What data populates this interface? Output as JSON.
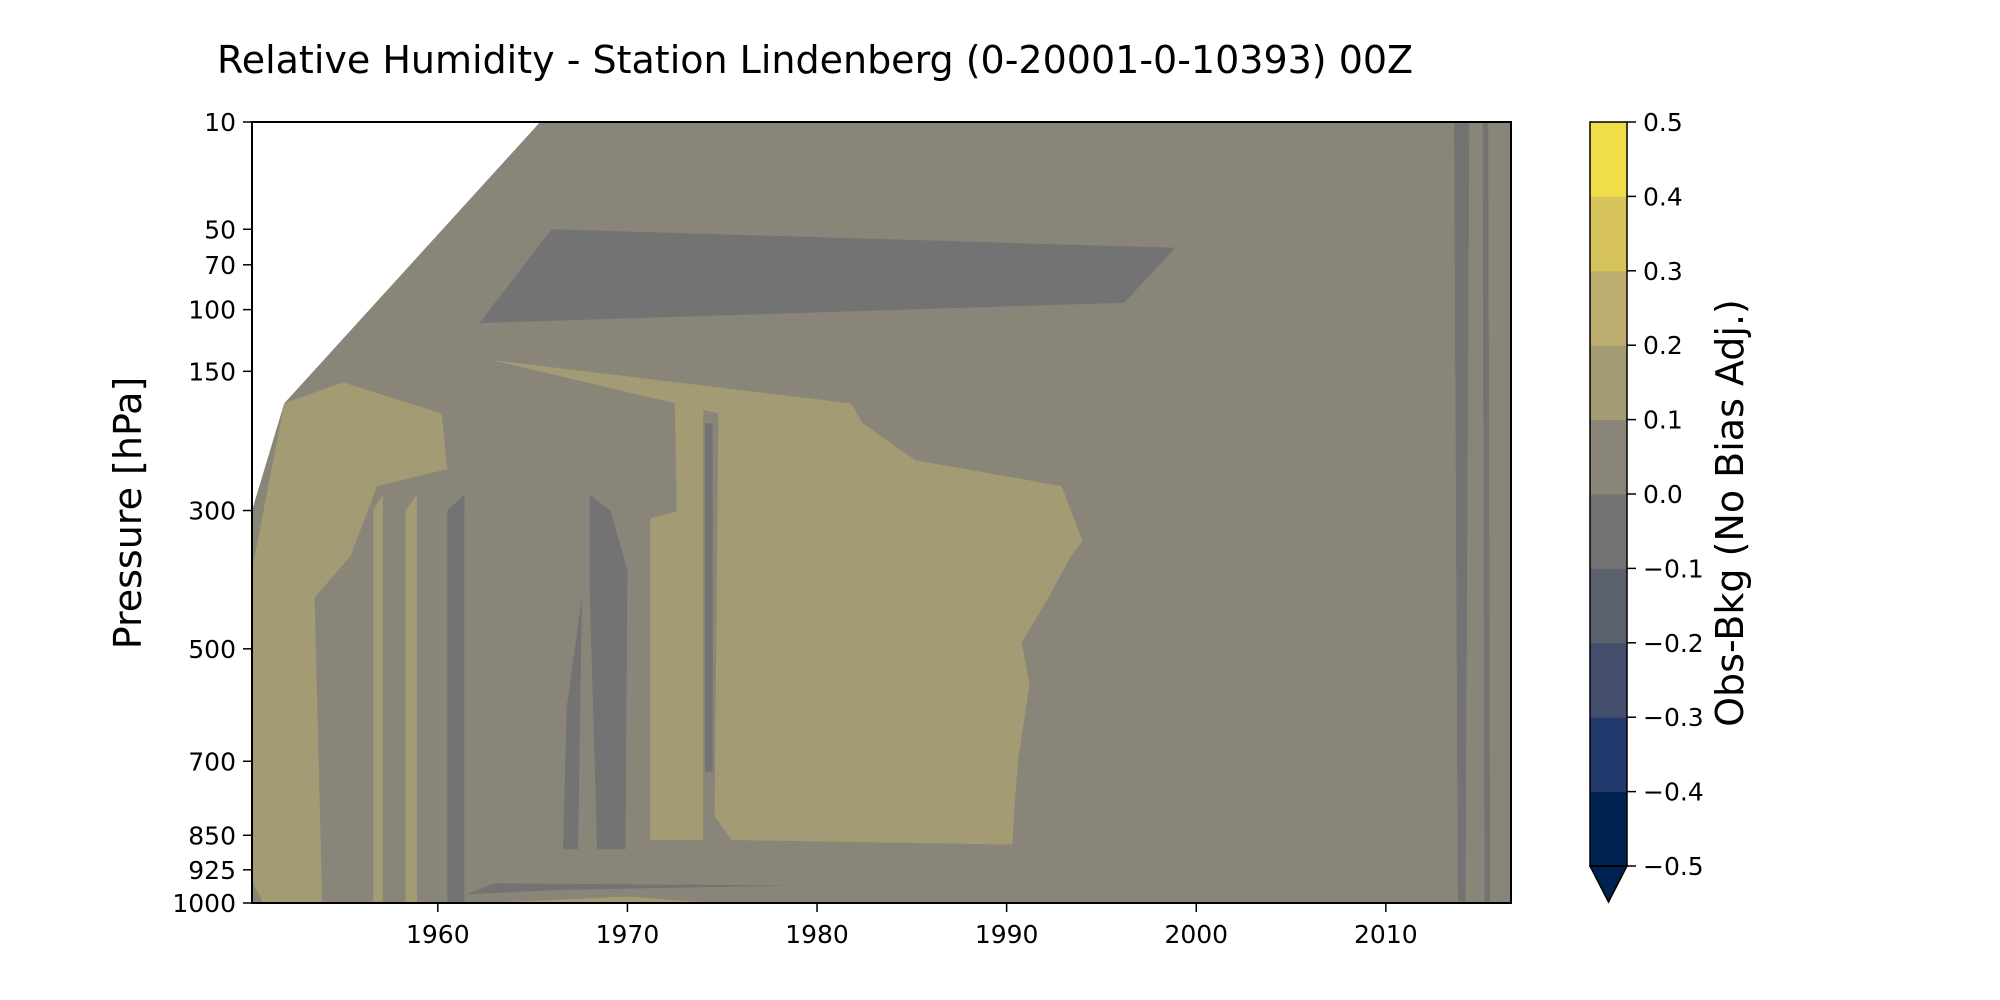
{
  "chart_data": {
    "type": "contour",
    "title": "Relative Humidity - Station Lindenberg (0-20001-0-10393) 00Z",
    "ylabel": "Pressure [hPa]",
    "xlabel": "",
    "x_ticks": [
      1960,
      1970,
      1980,
      1990,
      2000,
      2010
    ],
    "xlim": [
      1950.2,
      2016.6
    ],
    "y_ticks": [
      10,
      50,
      70,
      100,
      150,
      300,
      500,
      700,
      850,
      925,
      1000
    ],
    "ylim": [
      10,
      1000
    ],
    "y_inverted": true,
    "colorbar": {
      "label": "Obs-Bkg (No Bias Adj.)",
      "levels": [
        -0.5,
        -0.4,
        -0.3,
        -0.2,
        -0.1,
        0.0,
        0.1,
        0.2,
        0.3,
        0.4,
        0.5
      ],
      "tick_labels": [
        "−0.5",
        "−0.4",
        "−0.3",
        "−0.2",
        "−0.1",
        "0.0",
        "0.1",
        "0.2",
        "0.3",
        "0.4",
        "0.5"
      ],
      "colors": [
        "#00224e",
        "#233a6e",
        "#434e6c",
        "#5b606d",
        "#737373",
        "#898579",
        "#a39b74",
        "#bcad6e",
        "#d7c35c",
        "#f1dd47"
      ],
      "extend": "min",
      "under_color": "#00224e"
    },
    "regions": [
      {
        "name": "background",
        "value_bin": "0.0 to 0.1"
      },
      {
        "name": "positive-block-1975-1994",
        "x_range": [
          1974.5,
          1994.2
        ],
        "p_range": [
          150,
          870
        ],
        "value_bin": "0.1 to 0.2"
      },
      {
        "name": "negative-band-upper",
        "x_range": [
          1962,
          1999
        ],
        "p_range": [
          40,
          110
        ],
        "value_bin": "-0.1 to 0.0"
      },
      {
        "name": "positive-strip-early",
        "x_range": [
          1950.2,
          1962
        ],
        "p_range": [
          150,
          1000
        ],
        "value_bin": "0.1 to 0.2"
      }
    ]
  }
}
